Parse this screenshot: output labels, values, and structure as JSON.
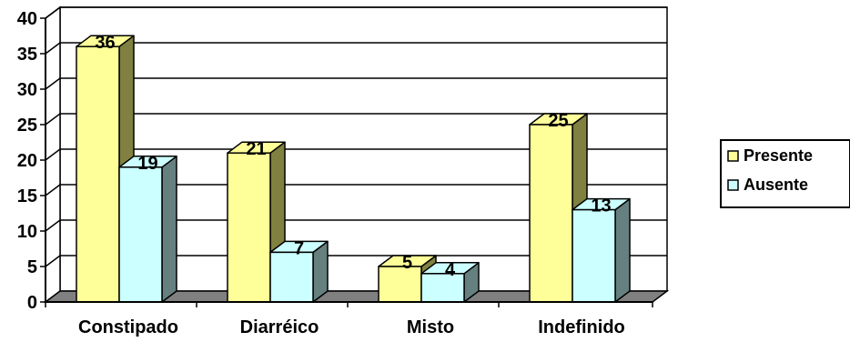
{
  "chart_data": {
    "type": "bar",
    "categories": [
      "Constipado",
      "Diarréico",
      "Misto",
      "Indefinido"
    ],
    "series": [
      {
        "name": "Presente",
        "values": [
          36,
          21,
          5,
          25
        ]
      },
      {
        "name": "Ausente",
        "values": [
          19,
          7,
          4,
          13
        ]
      }
    ],
    "ylim": [
      0,
      40
    ],
    "yticks": [
      0,
      5,
      10,
      15,
      20,
      25,
      30,
      35,
      40
    ],
    "grid": true,
    "legend": "right",
    "three_d": true,
    "colors": {
      "presente_front": "#ffff99",
      "presente_side": "#808040",
      "ausente_front": "#ccffff",
      "ausente_side": "#668080",
      "floor": "#808080",
      "wall": "#ffffff"
    }
  }
}
